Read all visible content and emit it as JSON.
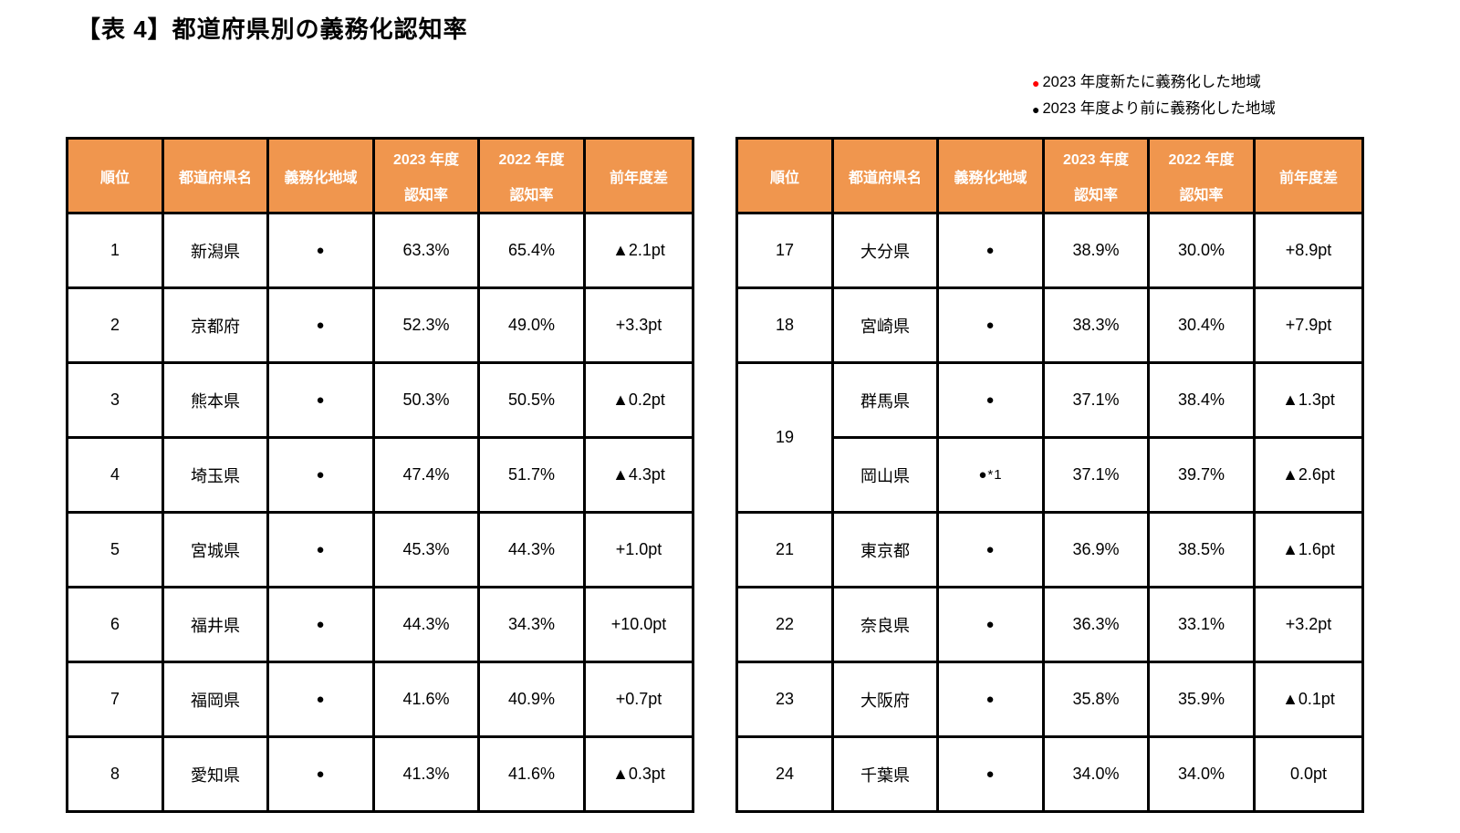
{
  "title": "【表 4】都道府県別の義務化認知率",
  "legend": {
    "items": [
      {
        "dot": "●",
        "color": "#FF0000",
        "label": "2023 年度新たに義務化した地域"
      },
      {
        "dot": "●",
        "color": "#000000",
        "label": "2023 年度より前に義務化した地域"
      }
    ]
  },
  "colors": {
    "header_bg": "#F0964E",
    "header_text": "#FFFFFF",
    "border": "#000000",
    "legend_new": "#FF0000",
    "legend_old": "#000000"
  },
  "table": {
    "headers": [
      {
        "line1": "順位",
        "line2": ""
      },
      {
        "line1": "都道府県名",
        "line2": ""
      },
      {
        "line1": "義務化地域",
        "line2": ""
      },
      {
        "line1": "2023 年度",
        "line2": "認知率"
      },
      {
        "line1": "2022 年度",
        "line2": "認知率"
      },
      {
        "line1": "前年度差",
        "line2": ""
      }
    ]
  },
  "left_table": {
    "rows": [
      {
        "rank": "1",
        "rank_rowspan": 1,
        "pref": "新潟県",
        "area": "●",
        "rate2023": "63.3%",
        "rate2022": "65.4%",
        "diff": "▲2.1pt"
      },
      {
        "rank": "2",
        "rank_rowspan": 1,
        "pref": "京都府",
        "area": "●",
        "rate2023": "52.3%",
        "rate2022": "49.0%",
        "diff": "+3.3pt"
      },
      {
        "rank": "3",
        "rank_rowspan": 1,
        "pref": "熊本県",
        "area": "●",
        "rate2023": "50.3%",
        "rate2022": "50.5%",
        "diff": "▲0.2pt"
      },
      {
        "rank": "4",
        "rank_rowspan": 1,
        "pref": "埼玉県",
        "area": "●",
        "rate2023": "47.4%",
        "rate2022": "51.7%",
        "diff": "▲4.3pt"
      },
      {
        "rank": "5",
        "rank_rowspan": 1,
        "pref": "宮城県",
        "area": "●",
        "rate2023": "45.3%",
        "rate2022": "44.3%",
        "diff": "+1.0pt"
      },
      {
        "rank": "6",
        "rank_rowspan": 1,
        "pref": "福井県",
        "area": "●",
        "rate2023": "44.3%",
        "rate2022": "34.3%",
        "diff": "+10.0pt"
      },
      {
        "rank": "7",
        "rank_rowspan": 1,
        "pref": "福岡県",
        "area": "●",
        "rate2023": "41.6%",
        "rate2022": "40.9%",
        "diff": "+0.7pt"
      },
      {
        "rank": "8",
        "rank_rowspan": 1,
        "pref": "愛知県",
        "area": "●",
        "rate2023": "41.3%",
        "rate2022": "41.6%",
        "diff": "▲0.3pt"
      }
    ]
  },
  "right_table": {
    "rows": [
      {
        "rank": "17",
        "rank_rowspan": 1,
        "pref": "大分県",
        "area": "●",
        "rate2023": "38.9%",
        "rate2022": "30.0%",
        "diff": "+8.9pt"
      },
      {
        "rank": "18",
        "rank_rowspan": 1,
        "pref": "宮崎県",
        "area": "●",
        "rate2023": "38.3%",
        "rate2022": "30.4%",
        "diff": "+7.9pt"
      },
      {
        "rank": "19",
        "rank_rowspan": 2,
        "pref": "群馬県",
        "area": "●",
        "rate2023": "37.1%",
        "rate2022": "38.4%",
        "diff": "▲1.3pt"
      },
      {
        "rank": null,
        "rank_rowspan": 1,
        "pref": "岡山県",
        "area": "●*1",
        "rate2023": "37.1%",
        "rate2022": "39.7%",
        "diff": "▲2.6pt"
      },
      {
        "rank": "21",
        "rank_rowspan": 1,
        "pref": "東京都",
        "area": "●",
        "rate2023": "36.9%",
        "rate2022": "38.5%",
        "diff": "▲1.6pt"
      },
      {
        "rank": "22",
        "rank_rowspan": 1,
        "pref": "奈良県",
        "area": "●",
        "rate2023": "36.3%",
        "rate2022": "33.1%",
        "diff": "+3.2pt"
      },
      {
        "rank": "23",
        "rank_rowspan": 1,
        "pref": "大阪府",
        "area": "●",
        "rate2023": "35.8%",
        "rate2022": "35.9%",
        "diff": "▲0.1pt"
      },
      {
        "rank": "24",
        "rank_rowspan": 1,
        "pref": "千葉県",
        "area": "●",
        "rate2023": "34.0%",
        "rate2022": "34.0%",
        "diff": "0.0pt"
      }
    ]
  }
}
